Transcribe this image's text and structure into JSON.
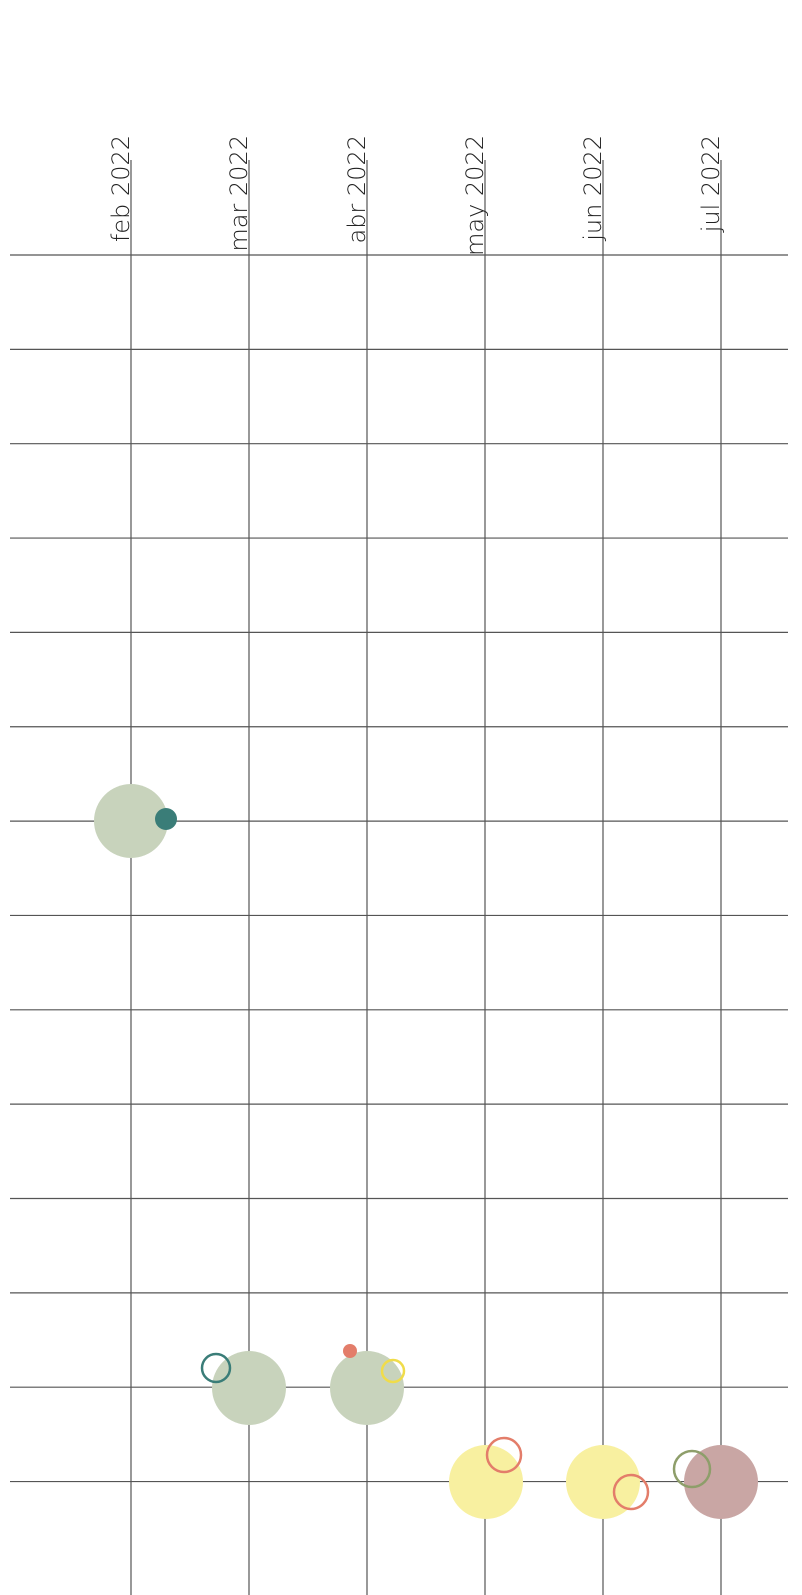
{
  "chart_data": {
    "type": "timeline",
    "categories": [
      "feb 2022",
      "mar 2022",
      "abr 2022",
      "may 2022",
      "jun 2022",
      "jul 2022"
    ]
  }
}
